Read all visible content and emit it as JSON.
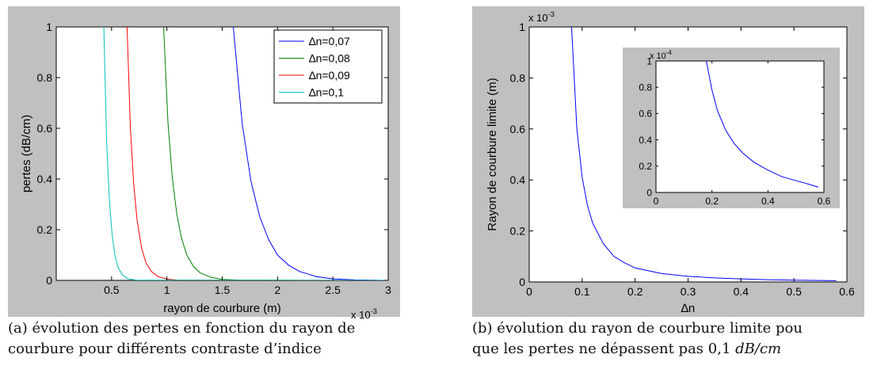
{
  "colors": {
    "figure_background": "#c0c0c0",
    "axes_background": "#ffffff",
    "blue": "#0000ff",
    "green": "#008000",
    "red": "#ff0000",
    "cyan": "#00bfbf"
  },
  "captions": {
    "a_line1": "(a) évolution des pertes en fonction du rayon de",
    "a_line2": "courbure pour différents contraste d’indice",
    "b_line1": "(b) évolution du rayon de courbure limite pou",
    "b_line2_text": "que les pertes ne dépassent pas 0,1 ",
    "b_line2_unit": "dB/cm"
  },
  "chart_data": [
    {
      "id": "chart-a",
      "type": "line",
      "title": "",
      "xlabel": "rayon de courbure (m)",
      "ylabel": "pertes (dB/cm)",
      "x_multiplier": "x 10",
      "x_multiplier_exp": "-3",
      "xlim": [
        0,
        3
      ],
      "ylim": [
        0,
        1
      ],
      "xticks": [
        0.5,
        1,
        1.5,
        2,
        2.5,
        3
      ],
      "xtick_labels": [
        "0.5",
        "1",
        "1.5",
        "2",
        "2.5",
        "3"
      ],
      "yticks": [
        0,
        0.2,
        0.4,
        0.6,
        0.8,
        1
      ],
      "ytick_labels": [
        "0",
        "0.2",
        "0.4",
        "0.6",
        "0.8",
        "1"
      ],
      "grid": false,
      "legend": "top-right",
      "series": [
        {
          "name": "∆n=0,07",
          "color": "#0000ff",
          "x": [
            1.6,
            1.68,
            1.76,
            1.84,
            1.92,
            2.0,
            2.1,
            2.2,
            2.35,
            2.5,
            2.7,
            3.0
          ],
          "y": [
            1.0,
            0.62,
            0.39,
            0.25,
            0.16,
            0.1,
            0.06,
            0.035,
            0.015,
            0.006,
            0.002,
            0.0
          ]
        },
        {
          "name": "∆n=0,08",
          "color": "#008000",
          "x": [
            0.97,
            1.01,
            1.05,
            1.09,
            1.13,
            1.18,
            1.24,
            1.3,
            1.4,
            1.5,
            1.65,
            3.0
          ],
          "y": [
            1.0,
            0.62,
            0.4,
            0.26,
            0.17,
            0.1,
            0.055,
            0.03,
            0.012,
            0.004,
            0.001,
            0.0
          ]
        },
        {
          "name": "∆n=0,09",
          "color": "#ff0000",
          "x": [
            0.64,
            0.67,
            0.7,
            0.73,
            0.77,
            0.81,
            0.86,
            0.92,
            1.0,
            1.1,
            3.0
          ],
          "y": [
            1.0,
            0.6,
            0.38,
            0.24,
            0.13,
            0.07,
            0.035,
            0.015,
            0.005,
            0.001,
            0.0
          ]
        },
        {
          "name": "∆n=0,1",
          "color": "#00bfbf",
          "x": [
            0.43,
            0.455,
            0.48,
            0.505,
            0.53,
            0.56,
            0.6,
            0.65,
            0.72,
            3.0
          ],
          "y": [
            1.0,
            0.55,
            0.32,
            0.18,
            0.1,
            0.05,
            0.02,
            0.006,
            0.001,
            0.0
          ]
        }
      ]
    },
    {
      "id": "chart-b",
      "type": "line",
      "title": "",
      "xlabel": "∆n",
      "ylabel": "Rayon de courbure limite (m)",
      "y_multiplier": "x 10",
      "y_multiplier_exp": "-3",
      "xlim": [
        0,
        0.6
      ],
      "ylim": [
        0,
        1
      ],
      "xticks": [
        0,
        0.1,
        0.2,
        0.3,
        0.4,
        0.5,
        0.6
      ],
      "xtick_labels": [
        "0",
        "0.1",
        "0.2",
        "0.3",
        "0.4",
        "0.5",
        "0.6"
      ],
      "yticks": [
        0,
        0.2,
        0.4,
        0.6,
        0.8,
        1
      ],
      "ytick_labels": [
        "0",
        "0.2",
        "0.4",
        "0.6",
        "0.8",
        "1"
      ],
      "grid": false,
      "series": [
        {
          "color": "#0000ff",
          "x": [
            0.08,
            0.09,
            0.1,
            0.11,
            0.12,
            0.14,
            0.16,
            0.18,
            0.2,
            0.25,
            0.3,
            0.35,
            0.4,
            0.45,
            0.5,
            0.58
          ],
          "y": [
            1.0,
            0.6,
            0.41,
            0.3,
            0.23,
            0.15,
            0.1,
            0.075,
            0.055,
            0.033,
            0.022,
            0.016,
            0.012,
            0.009,
            0.007,
            0.005
          ]
        }
      ],
      "inset": {
        "xlim": [
          0,
          0.6
        ],
        "ylim": [
          0,
          1
        ],
        "y_multiplier": "x 10",
        "y_multiplier_exp": "-4",
        "xticks": [
          0,
          0.2,
          0.4,
          0.6
        ],
        "xtick_labels": [
          "0",
          "0.2",
          "0.4",
          "0.6"
        ],
        "yticks": [
          0,
          0.2,
          0.4,
          0.6,
          0.8,
          1
        ],
        "ytick_labels": [
          "0",
          "0.2",
          "0.4",
          "0.6",
          "0.8",
          "1"
        ],
        "series": [
          {
            "color": "#0000ff",
            "x": [
              0.18,
              0.2,
              0.22,
              0.25,
              0.28,
              0.31,
              0.35,
              0.4,
              0.45,
              0.5,
              0.55,
              0.58
            ],
            "y": [
              1.0,
              0.78,
              0.62,
              0.47,
              0.37,
              0.3,
              0.23,
              0.17,
              0.12,
              0.09,
              0.06,
              0.04
            ]
          }
        ]
      }
    }
  ]
}
